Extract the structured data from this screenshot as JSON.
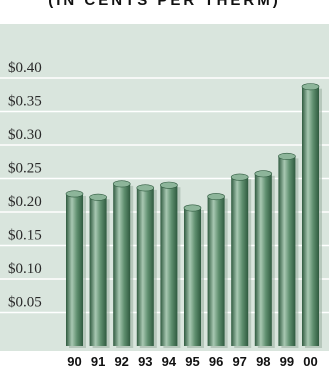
{
  "chart_data": {
    "type": "bar",
    "title": "(IN CENTS PER THERM)",
    "categories": [
      "90",
      "91",
      "92",
      "93",
      "94",
      "95",
      "96",
      "97",
      "98",
      "99",
      "00"
    ],
    "values": [
      0.227,
      0.222,
      0.242,
      0.236,
      0.24,
      0.206,
      0.223,
      0.252,
      0.257,
      0.283,
      0.387
    ],
    "ytick_labels": [
      "$0.05",
      "$0.10",
      "$0.15",
      "$0.20",
      "$0.25",
      "$0.30",
      "$0.35",
      "$0.40"
    ],
    "ytick_values": [
      0.05,
      0.1,
      0.15,
      0.2,
      0.25,
      0.3,
      0.35,
      0.4
    ],
    "ylim": [
      0,
      0.45
    ],
    "grid": true,
    "colors": {
      "panel": "#d9e5dd",
      "grid": "#ffffff",
      "bar_dark": "#2f5a3f",
      "bar_mid": "#5f8f6f",
      "bar_light": "#a8c8b2",
      "bar_top": "#8db59a"
    }
  }
}
